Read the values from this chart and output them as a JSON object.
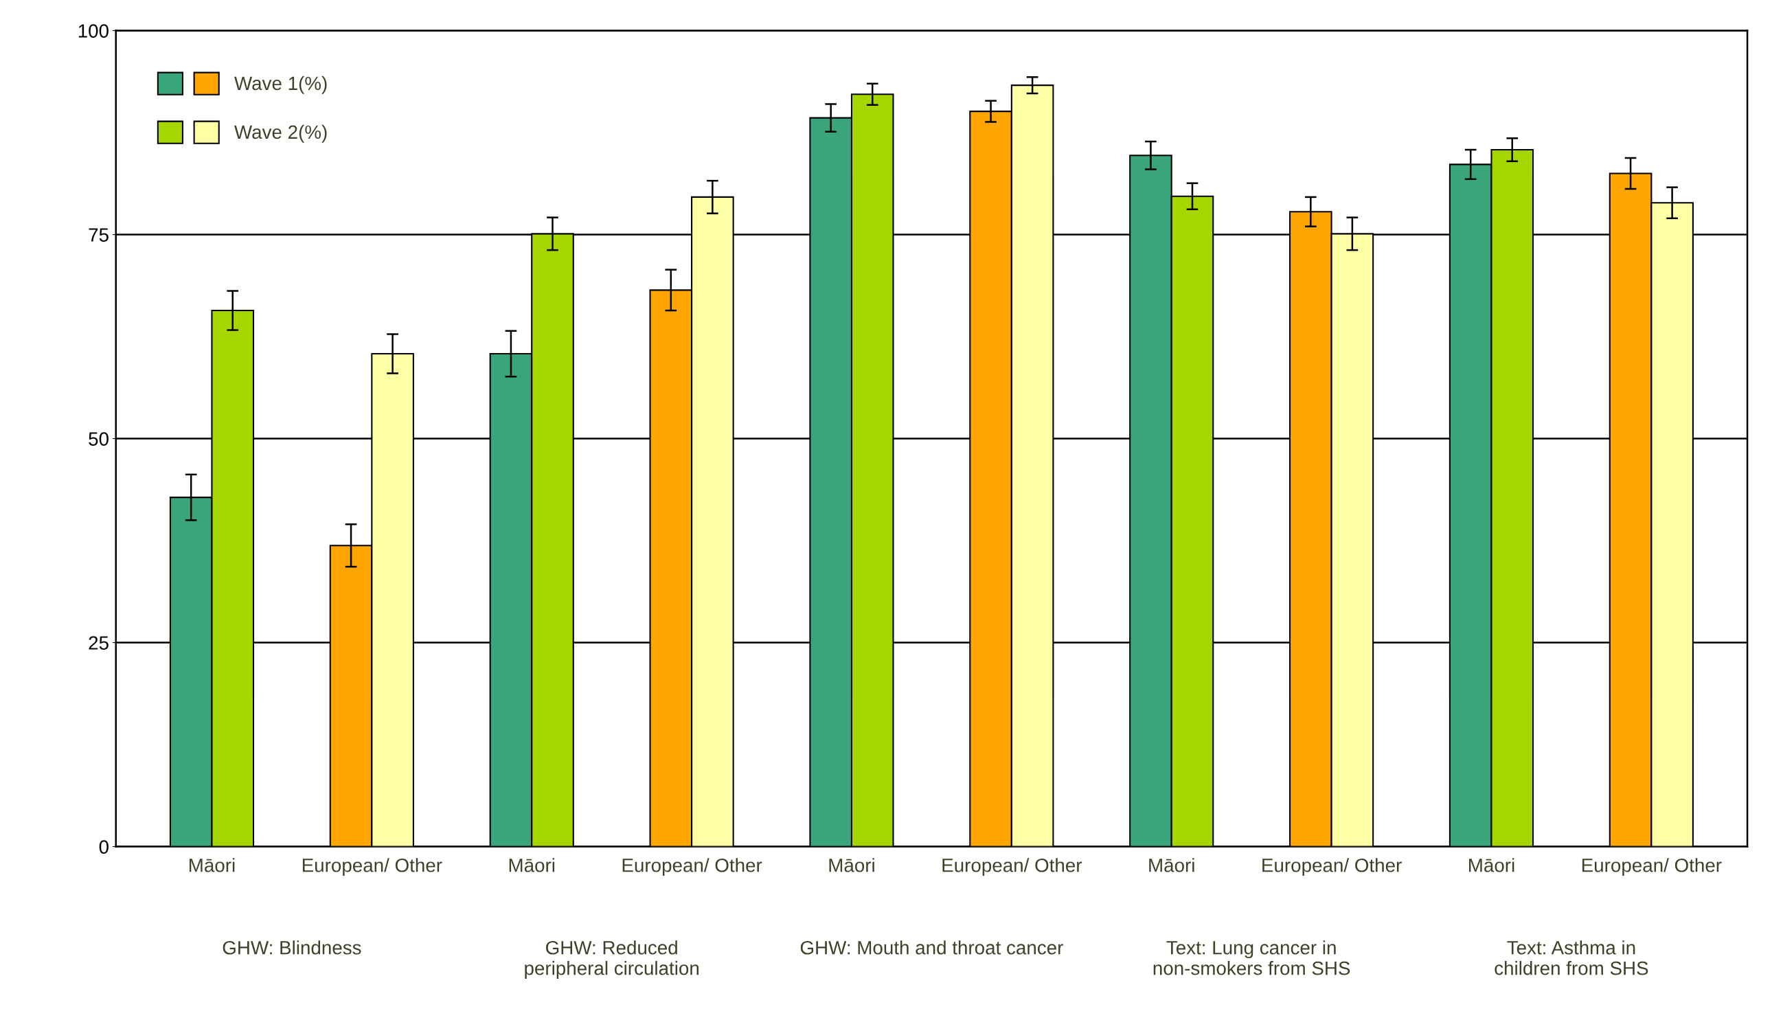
{
  "chart_data": {
    "type": "bar",
    "categories": [
      "Māori",
      "European/ Other",
      "Māori",
      "European/ Other",
      "Māori",
      "European/ Other",
      "Māori",
      "European/ Other",
      "Māori",
      "European/ Other"
    ],
    "series": [
      {
        "name": "Wave 1(%)",
        "colors": [
          "#3aa57a",
          "#ffa500",
          "#3aa57a",
          "#ffa500",
          "#3aa57a",
          "#ffa500",
          "#3aa57a",
          "#ffa500",
          "#3aa57a",
          "#ffa500"
        ],
        "values": [
          42.8,
          36.9,
          60.4,
          68.2,
          89.3,
          90.1,
          84.7,
          77.8,
          83.6,
          82.5
        ],
        "errors": [
          2.8,
          2.6,
          2.8,
          2.5,
          1.7,
          1.3,
          1.7,
          1.8,
          1.8,
          1.9
        ]
      },
      {
        "name": "Wave 2(%)",
        "colors": [
          "#a6d600",
          "#ffffa6",
          "#a6d600",
          "#ffffa6",
          "#a6d600",
          "#ffffa6",
          "#a6d600",
          "#ffffa6",
          "#a6d600",
          "#ffffa6"
        ],
        "values": [
          65.7,
          60.4,
          75.1,
          79.6,
          92.2,
          93.3,
          79.7,
          75.1,
          85.4,
          78.9
        ],
        "errors": [
          2.4,
          2.4,
          2.0,
          2.0,
          1.3,
          1.0,
          1.6,
          2.0,
          1.4,
          1.9
        ]
      }
    ],
    "annotations": [
      "GHW: Blindness",
      "GHW: Reduced peripheral circulation",
      "GHW: Mouth and throat cancer",
      "Text: Lung cancer in non-smokers from SHS",
      "Text: Asthma in children from SHS"
    ],
    "ylim": [
      0,
      100
    ],
    "yticks": [
      0,
      25,
      50,
      75,
      100
    ],
    "grid": "y",
    "legend": "top left"
  }
}
